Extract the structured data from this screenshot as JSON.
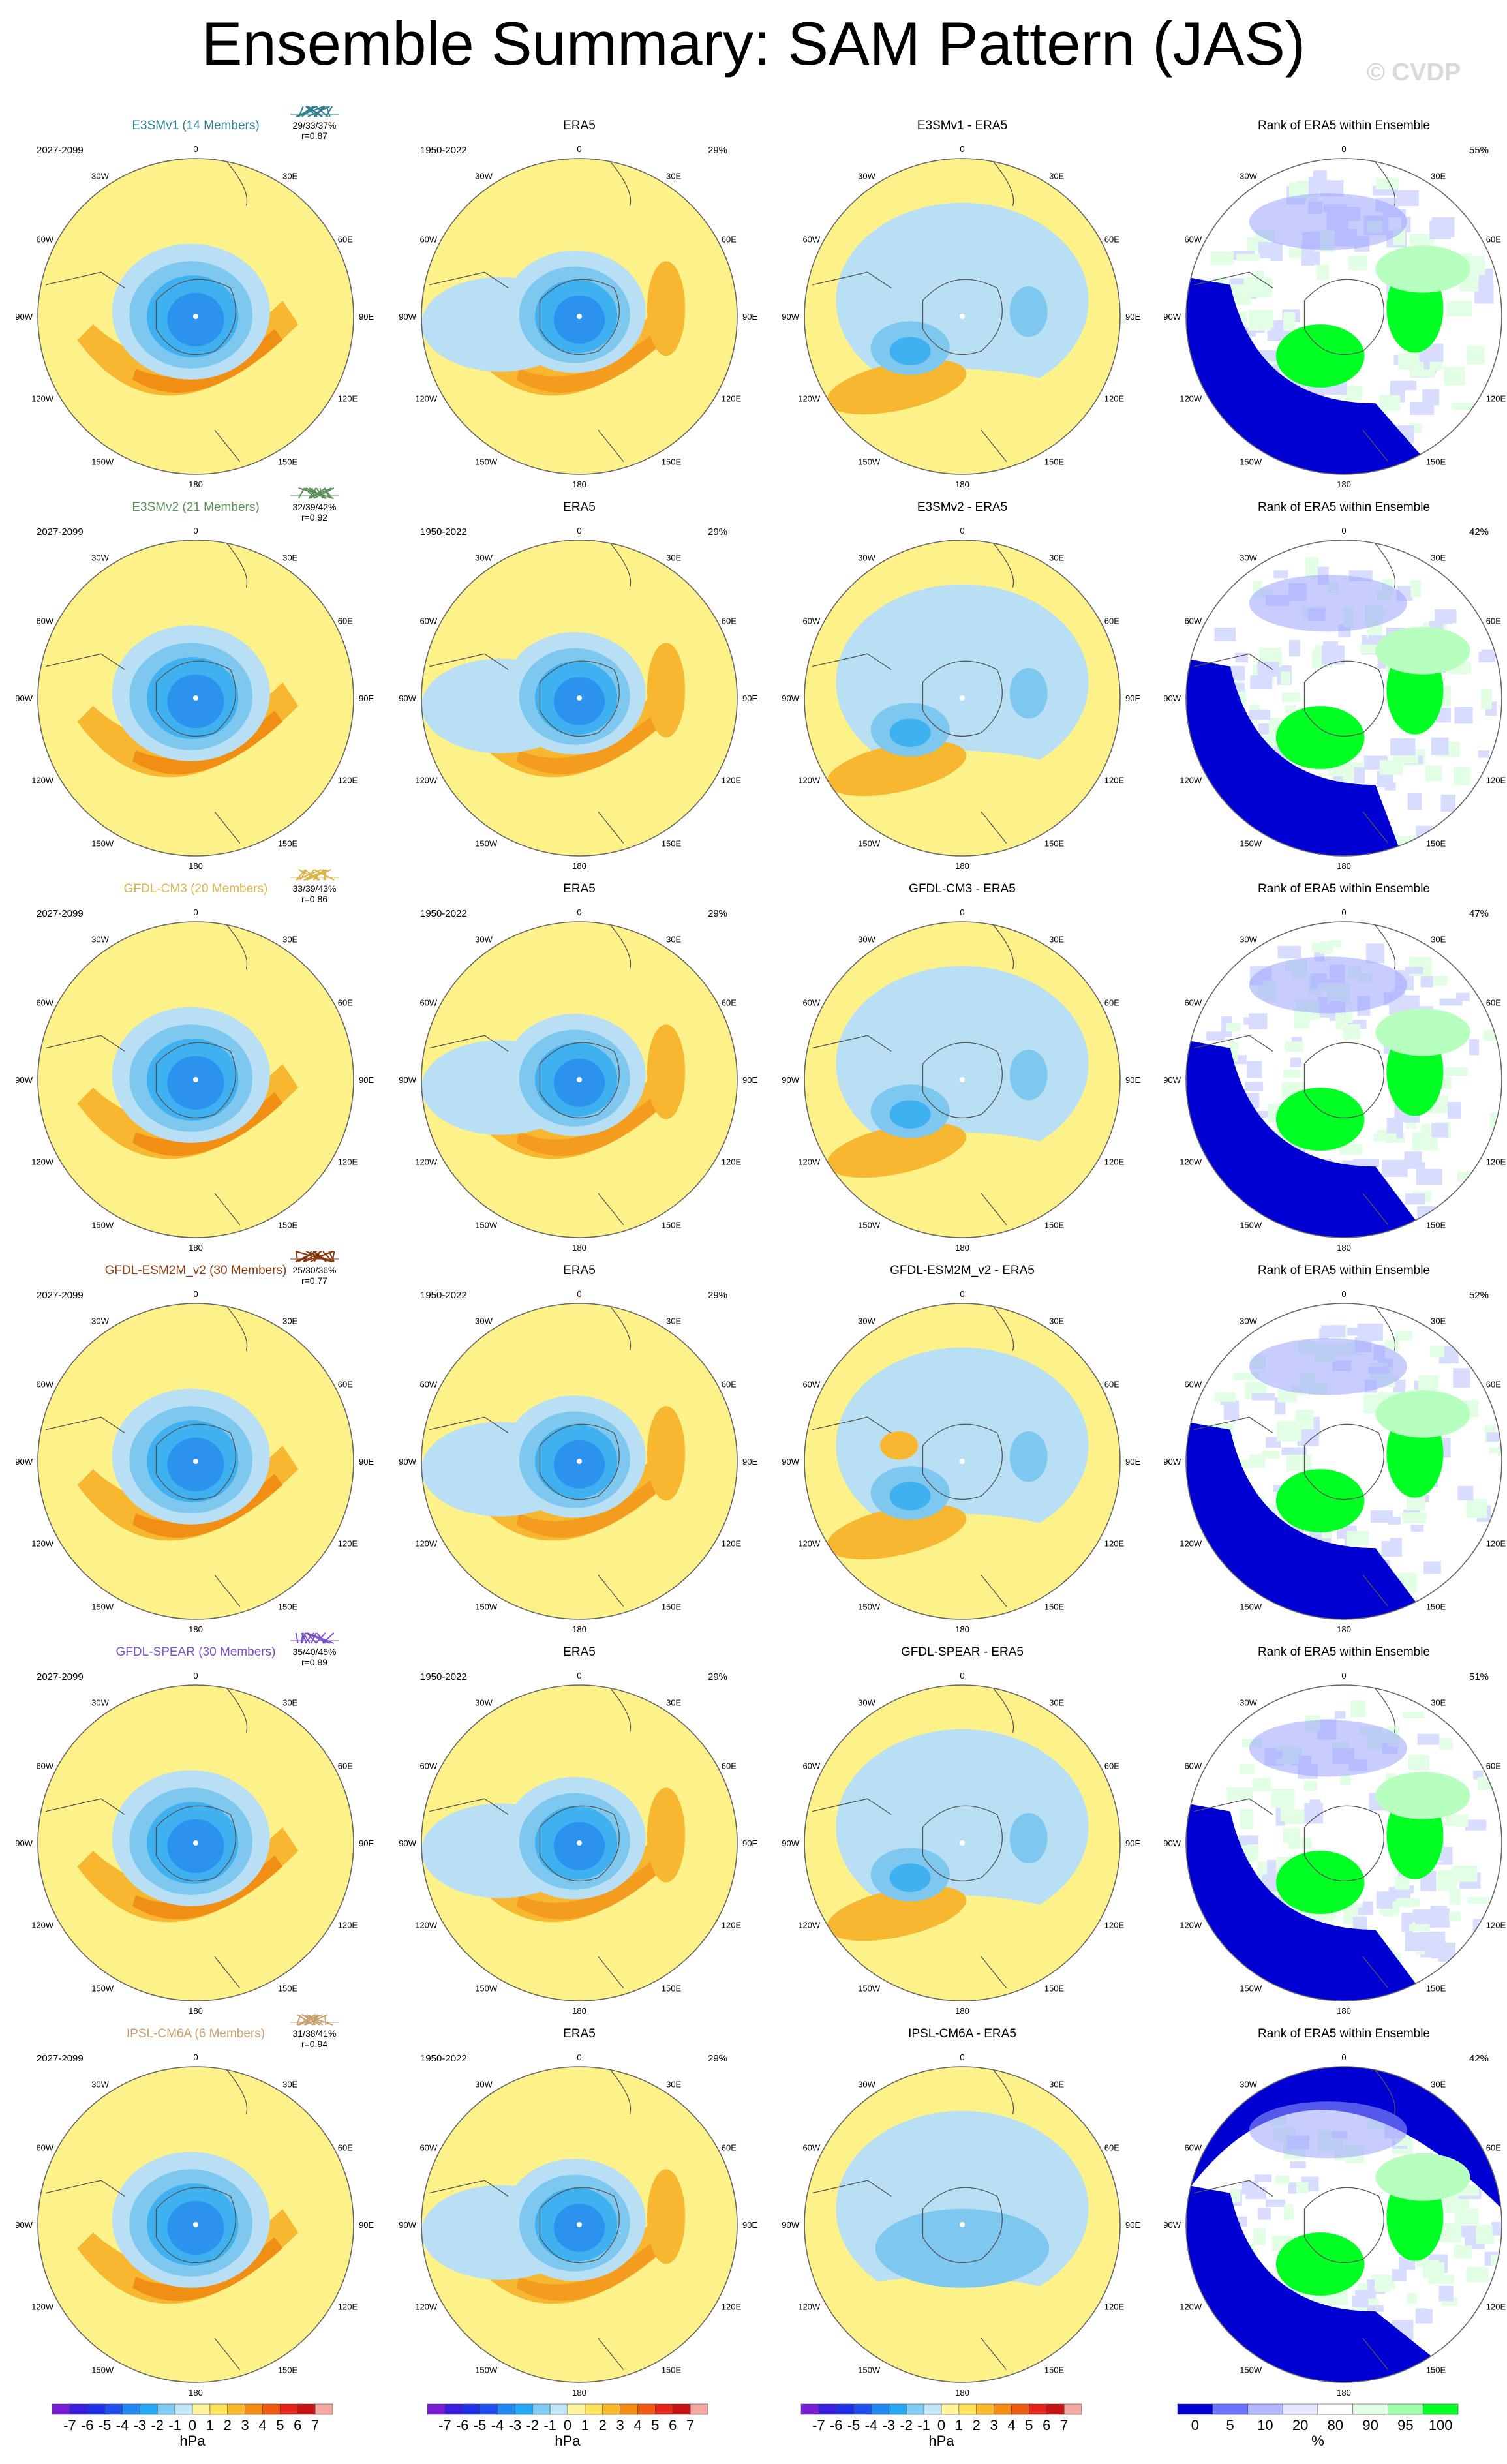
{
  "figure": {
    "title": "Ensemble Summary: SAM Pattern (JAS)",
    "watermark": "© CVDP"
  },
  "lon_labels": {
    "south": "0",
    "ne_top": "30E",
    "nw_top": "30W",
    "ne_upper": "60E",
    "nw_upper": "60W",
    "east": "90E",
    "west": "90W",
    "se_lower": "120E",
    "sw_lower": "120W",
    "se_bottom": "150E",
    "sw_bottom": "150W",
    "north": "180"
  },
  "colors": {
    "light_yellow": "#fff59d",
    "bg_yellow": "#fdf18a",
    "orange": "#f7b731",
    "dark_orange": "#f08a12",
    "light_blue": "#b9dff5",
    "mid_blue": "#7ec8f0",
    "blue": "#3fb1f0",
    "deep_blue": "#2b93ee",
    "navy": "#0000d2",
    "lavender": "#d8dcff",
    "periwinkle": "#9aa2ff",
    "green": "#00ff22",
    "light_green": "#b6ffbe",
    "pale_green": "#e2ffe5"
  },
  "rows": [
    {
      "model": "E3SMv1 (14 Members)",
      "model_color": "#2f7f8f",
      "model_period": "2027-2099",
      "stats": "29/33/37%",
      "r": "r=0.87",
      "obs_title": "ERA5",
      "obs_period": "1950-2022",
      "obs_pct": "29%",
      "diff_title": "E3SMv1 - ERA5",
      "rank_title": "Rank of ERA5 within Ensemble",
      "rank_pct": "55%"
    },
    {
      "model": "E3SMv2 (21 Members)",
      "model_color": "#5a8f5a",
      "model_period": "2027-2099",
      "stats": "32/39/42%",
      "r": "r=0.92",
      "obs_title": "ERA5",
      "obs_period": "1950-2022",
      "obs_pct": "29%",
      "diff_title": "E3SMv2 - ERA5",
      "rank_title": "Rank of ERA5 within Ensemble",
      "rank_pct": "42%"
    },
    {
      "model": "GFDL-CM3 (20 Members)",
      "model_color": "#d8b44a",
      "model_period": "2027-2099",
      "stats": "33/39/43%",
      "r": "r=0.86",
      "obs_title": "ERA5",
      "obs_period": "1950-2022",
      "obs_pct": "29%",
      "diff_title": "GFDL-CM3 - ERA5",
      "rank_title": "Rank of ERA5 within Ensemble",
      "rank_pct": "47%"
    },
    {
      "model": "GFDL-ESM2M_v2 (30 Members)",
      "model_color": "#8b3a10",
      "model_period": "2027-2099",
      "stats": "25/30/36%",
      "r": "r=0.77",
      "obs_title": "ERA5",
      "obs_period": "1950-2022",
      "obs_pct": "29%",
      "diff_title": "GFDL-ESM2M_v2 - ERA5",
      "rank_title": "Rank of ERA5 within Ensemble",
      "rank_pct": "52%"
    },
    {
      "model": "GFDL-SPEAR (30 Members)",
      "model_color": "#7a52c8",
      "model_period": "2027-2099",
      "stats": "35/40/45%",
      "r": "r=0.89",
      "obs_title": "ERA5",
      "obs_period": "1950-2022",
      "obs_pct": "29%",
      "diff_title": "GFDL-SPEAR - ERA5",
      "rank_title": "Rank of ERA5 within Ensemble",
      "rank_pct": "51%"
    },
    {
      "model": "IPSL-CM6A (6 Members)",
      "model_color": "#c8a070",
      "model_period": "2027-2099",
      "stats": "31/38/41%",
      "r": "r=0.94",
      "obs_title": "ERA5",
      "obs_period": "1950-2022",
      "obs_pct": "29%",
      "diff_title": "IPSL-CM6A - ERA5",
      "rank_title": "Rank of ERA5 within Ensemble",
      "rank_pct": "42%"
    }
  ],
  "colorbar_hpa": {
    "labels": [
      "-7",
      "-6",
      "-5",
      "-4",
      "-3",
      "-2",
      "-1",
      "0",
      "1",
      "2",
      "3",
      "4",
      "5",
      "6",
      "7"
    ],
    "units": "hPa",
    "colors": [
      "#7a1fd6",
      "#3a1fe0",
      "#2030e8",
      "#2050f0",
      "#1f86f2",
      "#23a8f5",
      "#7fcdf5",
      "#bfe5f7",
      "#fff59d",
      "#fde25a",
      "#f9b72a",
      "#f48a12",
      "#ee5a10",
      "#e2241a",
      "#c81414",
      "#f4a6a0"
    ]
  },
  "colorbar_rank": {
    "labels": [
      "0",
      "5",
      "10",
      "20",
      "80",
      "90",
      "95",
      "100"
    ],
    "units": "%",
    "colors": [
      "#0000d2",
      "#6a72ff",
      "#b0b6ff",
      "#e4e7ff",
      "#ffffff",
      "#e2ffe5",
      "#9cffa8",
      "#00ff22"
    ]
  }
}
